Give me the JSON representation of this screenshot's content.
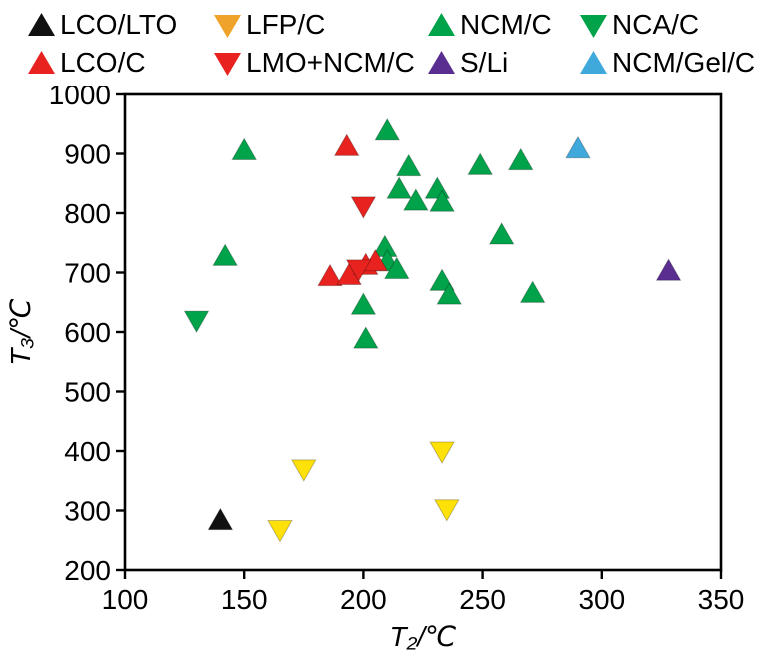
{
  "page": {
    "background": "#ffffff",
    "axis_color": "#000000"
  },
  "chart_data": {
    "type": "scatter",
    "title": "",
    "xlabel": "T₂/℃",
    "ylabel": "T₃/℃",
    "xlim": [
      100,
      350
    ],
    "ylim": [
      200,
      1000
    ],
    "xticks": [
      100,
      150,
      200,
      250,
      300,
      350
    ],
    "yticks": [
      200,
      300,
      400,
      500,
      600,
      700,
      800,
      900,
      1000
    ],
    "grid": false,
    "legend_position": "top",
    "series": [
      {
        "name": "LCO/LTO",
        "marker": "triangle-up",
        "color": "#111111",
        "legend_color": "#111111",
        "points": [
          [
            140,
            283
          ]
        ]
      },
      {
        "name": "LFP/C",
        "marker": "triangle-down",
        "color": "#ffe10a",
        "legend_color": "#f0a32a",
        "points": [
          [
            165,
            268
          ],
          [
            175,
            370
          ],
          [
            233,
            400
          ],
          [
            235,
            303
          ]
        ]
      },
      {
        "name": "NCM/C",
        "marker": "triangle-up",
        "color": "#00a24a",
        "legend_color": "#00a24a",
        "points": [
          [
            150,
            905
          ],
          [
            210,
            938
          ],
          [
            219,
            878
          ],
          [
            249,
            880
          ],
          [
            266,
            888
          ],
          [
            215,
            840
          ],
          [
            222,
            820
          ],
          [
            231,
            840
          ],
          [
            233,
            818
          ],
          [
            258,
            763
          ],
          [
            209,
            742
          ],
          [
            142,
            727
          ],
          [
            210,
            718
          ],
          [
            214,
            705
          ],
          [
            233,
            685
          ],
          [
            236,
            662
          ],
          [
            271,
            665
          ],
          [
            200,
            645
          ],
          [
            201,
            588
          ]
        ]
      },
      {
        "name": "NCA/C",
        "marker": "triangle-down",
        "color": "#00a24a",
        "legend_color": "#00a24a",
        "points": [
          [
            130,
            620
          ]
        ]
      },
      {
        "name": "LCO/C",
        "marker": "triangle-up",
        "color": "#e8231f",
        "legend_color": "#e8231f",
        "points": [
          [
            193,
            912
          ],
          [
            186,
            693
          ],
          [
            194,
            695
          ],
          [
            201,
            712
          ],
          [
            205,
            718
          ]
        ]
      },
      {
        "name": "LMO+NCM/C",
        "marker": "triangle-down",
        "color": "#e8231f",
        "legend_color": "#e8231f",
        "points": [
          [
            200,
            812
          ],
          [
            198,
            706
          ]
        ]
      },
      {
        "name": "S/Li",
        "marker": "triangle-up",
        "color": "#5a2d91",
        "legend_color": "#5a2d91",
        "points": [
          [
            328,
            702
          ]
        ]
      },
      {
        "name": "NCM/Gel/C",
        "marker": "triangle-up",
        "color": "#3fa9dc",
        "legend_color": "#3fa9dc",
        "points": [
          [
            290,
            908
          ]
        ]
      }
    ]
  }
}
